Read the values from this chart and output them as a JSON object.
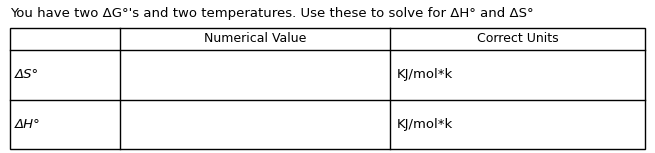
{
  "title": "You have two ΔG°'s and two temperatures. Use these to solve for ΔH° and ΔS°",
  "col_headers": [
    "Numerical Value",
    "Correct Units"
  ],
  "row_labels": [
    "ΔS°",
    "ΔH°"
  ],
  "row_units": [
    "KJ/mol*k",
    "KJ/mol*k"
  ],
  "background_color": "#ffffff",
  "border_color": "#000000",
  "title_fontsize": 9.5,
  "header_fontsize": 9,
  "cell_fontsize": 9.5,
  "fig_width": 6.55,
  "fig_height": 1.53,
  "dpi": 100
}
